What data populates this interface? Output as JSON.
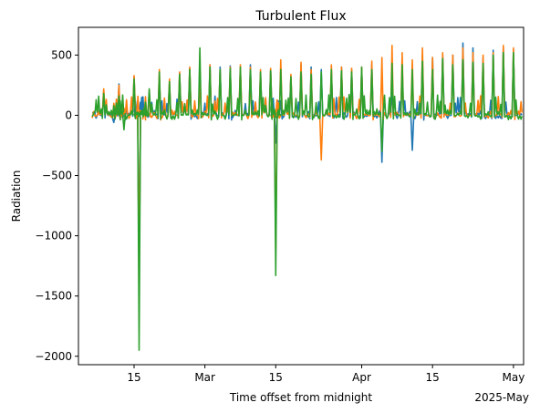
{
  "chart_data": {
    "type": "line",
    "title": "Turbulent Flux",
    "xlabel": "Time offset from midnight",
    "ylabel": "Radiation",
    "x_offset_label": "2025-May",
    "x_axis": {
      "type": "date",
      "range": [
        "2025-02-04",
        "2025-05-03"
      ]
    },
    "ylim": [
      -2070,
      730
    ],
    "x_ticks": [
      {
        "date": "2025-02-15",
        "label": "15"
      },
      {
        "date": "2025-03-01",
        "label": "Mar"
      },
      {
        "date": "2025-03-15",
        "label": "15"
      },
      {
        "date": "2025-04-01",
        "label": "Apr"
      },
      {
        "date": "2025-04-15",
        "label": "15"
      },
      {
        "date": "2025-05-01",
        "label": "May"
      }
    ],
    "y_ticks": [
      {
        "value": 500,
        "label": "500"
      },
      {
        "value": 0,
        "label": "0"
      },
      {
        "value": -500,
        "label": "−500"
      },
      {
        "value": -1000,
        "label": "−1000"
      },
      {
        "value": -1500,
        "label": "−1500"
      },
      {
        "value": -2000,
        "label": "−2000"
      }
    ],
    "grid": false,
    "legend": "none",
    "series": [
      {
        "color": "#1f77b4",
        "x": [
          "2025-02-07",
          "2025-02-09",
          "2025-02-11",
          "2025-02-12",
          "2025-02-13",
          "2025-02-15",
          "2025-02-16",
          "2025-02-17",
          "2025-02-18",
          "2025-02-20",
          "2025-02-22",
          "2025-02-24",
          "2025-02-26",
          "2025-02-28",
          "2025-03-02",
          "2025-03-04",
          "2025-03-06",
          "2025-03-08",
          "2025-03-10",
          "2025-03-12",
          "2025-03-14",
          "2025-03-15",
          "2025-03-16",
          "2025-03-18",
          "2025-03-20",
          "2025-03-22",
          "2025-03-24",
          "2025-03-26",
          "2025-03-28",
          "2025-03-30",
          "2025-04-01",
          "2025-04-03",
          "2025-04-05",
          "2025-04-07",
          "2025-04-09",
          "2025-04-11",
          "2025-04-13",
          "2025-04-15",
          "2025-04-17",
          "2025-04-19",
          "2025-04-21",
          "2025-04-23",
          "2025-04-25",
          "2025-04-27",
          "2025-04-29",
          "2025-05-01"
        ],
        "y": [
          20,
          200,
          -60,
          260,
          40,
          320,
          -1380,
          80,
          190,
          300,
          260,
          350,
          390,
          380,
          420,
          400,
          410,
          380,
          420,
          350,
          380,
          -230,
          120,
          320,
          420,
          400,
          380,
          350,
          400,
          380,
          380,
          420,
          -390,
          200,
          330,
          -290,
          500,
          480,
          500,
          500,
          600,
          560,
          480,
          540,
          560,
          540
        ]
      },
      {
        "color": "#ff7f0e",
        "x": [
          "2025-02-07",
          "2025-02-09",
          "2025-02-11",
          "2025-02-12",
          "2025-02-13",
          "2025-02-15",
          "2025-02-16",
          "2025-02-17",
          "2025-02-18",
          "2025-02-20",
          "2025-02-22",
          "2025-02-24",
          "2025-02-26",
          "2025-02-28",
          "2025-03-02",
          "2025-03-04",
          "2025-03-06",
          "2025-03-08",
          "2025-03-10",
          "2025-03-12",
          "2025-03-14",
          "2025-03-15",
          "2025-03-16",
          "2025-03-18",
          "2025-03-20",
          "2025-03-22",
          "2025-03-24",
          "2025-03-26",
          "2025-03-28",
          "2025-03-30",
          "2025-04-01",
          "2025-04-03",
          "2025-04-05",
          "2025-04-07",
          "2025-04-09",
          "2025-04-11",
          "2025-04-13",
          "2025-04-15",
          "2025-04-17",
          "2025-04-19",
          "2025-04-21",
          "2025-04-23",
          "2025-04-25",
          "2025-04-27",
          "2025-04-29",
          "2025-05-01"
        ],
        "y": [
          30,
          220,
          100,
          250,
          60,
          330,
          -1380,
          60,
          200,
          380,
          300,
          360,
          400,
          360,
          420,
          380,
          400,
          420,
          400,
          380,
          390,
          -1100,
          460,
          340,
          440,
          380,
          -370,
          420,
          400,
          390,
          400,
          450,
          480,
          580,
          520,
          460,
          560,
          480,
          520,
          500,
          560,
          520,
          500,
          520,
          580,
          560
        ]
      },
      {
        "color": "#2ca02c",
        "x": [
          "2025-02-07",
          "2025-02-09",
          "2025-02-11",
          "2025-02-12",
          "2025-02-13",
          "2025-02-15",
          "2025-02-16",
          "2025-02-17",
          "2025-02-18",
          "2025-02-20",
          "2025-02-22",
          "2025-02-24",
          "2025-02-26",
          "2025-02-28",
          "2025-03-02",
          "2025-03-04",
          "2025-03-06",
          "2025-03-08",
          "2025-03-10",
          "2025-03-12",
          "2025-03-14",
          "2025-03-15",
          "2025-03-16",
          "2025-03-18",
          "2025-03-20",
          "2025-03-22",
          "2025-03-24",
          "2025-03-26",
          "2025-03-28",
          "2025-03-30",
          "2025-04-01",
          "2025-04-03",
          "2025-04-05",
          "2025-04-07",
          "2025-04-09",
          "2025-04-11",
          "2025-04-13",
          "2025-04-15",
          "2025-04-17",
          "2025-04-19",
          "2025-04-21",
          "2025-04-23",
          "2025-04-25",
          "2025-04-27",
          "2025-04-29",
          "2025-05-01"
        ],
        "y": [
          10,
          180,
          80,
          160,
          -120,
          300,
          -1950,
          60,
          220,
          360,
          280,
          340,
          380,
          560,
          400,
          380,
          390,
          400,
          380,
          360,
          370,
          -1330,
          380,
          320,
          360,
          340,
          360,
          380,
          370,
          360,
          400,
          380,
          -300,
          430,
          420,
          380,
          450,
          380,
          470,
          420,
          460,
          440,
          430,
          500,
          520,
          520
        ]
      }
    ]
  }
}
